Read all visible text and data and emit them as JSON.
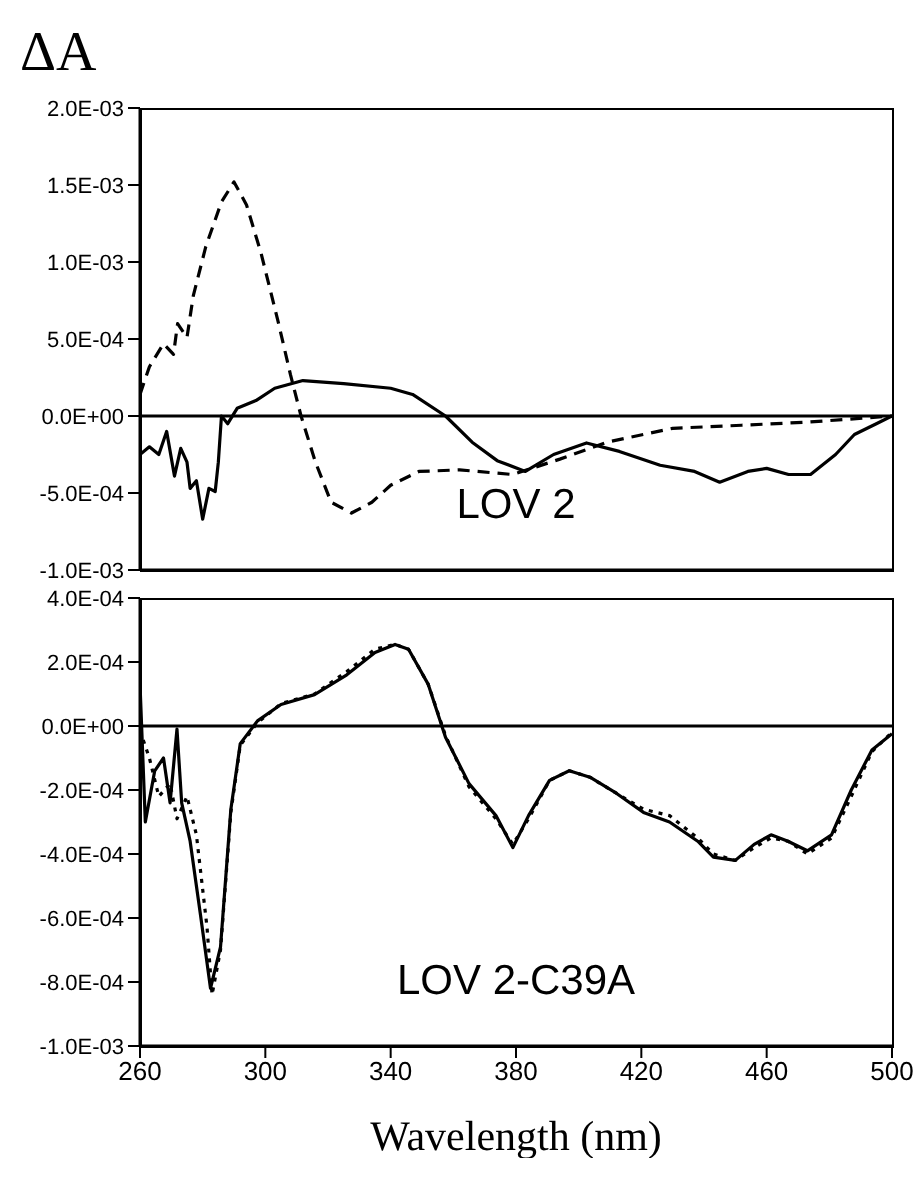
{
  "chart_data": [
    {
      "type": "line",
      "title": "LOV 2",
      "ylabel": "ΔA",
      "tick_labels": "y",
      "xlim": [
        260,
        500
      ],
      "ylim": [
        -0.001,
        0.002
      ],
      "yticks": [
        {
          "value": 0.002,
          "label": "2.0E-03"
        },
        {
          "value": 0.0015,
          "label": "1.5E-03"
        },
        {
          "value": 0.001,
          "label": "1.0E-03"
        },
        {
          "value": 0.0005,
          "label": "5.0E-04"
        },
        {
          "value": 0,
          "label": "0.0E+00"
        },
        {
          "value": -0.0005,
          "label": "-5.0E-04"
        },
        {
          "value": -0.001,
          "label": "-1.0E-03"
        }
      ],
      "ref_lines": [
        {
          "axis": "y",
          "value": 0,
          "color": "#000000"
        }
      ],
      "series": [
        {
          "color": "#000000",
          "line_style": "solid",
          "x": [
            260,
            263,
            266,
            268.5,
            271,
            273,
            275,
            276,
            278,
            280,
            282,
            284,
            285,
            286,
            288,
            291,
            297,
            303,
            312,
            325,
            340,
            347,
            357.5,
            366,
            374,
            383,
            392,
            402.5,
            413,
            426,
            437,
            445,
            454,
            460,
            467,
            474,
            482,
            488,
            495,
            500
          ],
          "values": [
            -0.00025,
            -0.0002,
            -0.00025,
            -0.0001,
            -0.00039,
            -0.00021,
            -0.0003,
            -0.00047,
            -0.00042,
            -0.00067,
            -0.00047,
            -0.00049,
            -0.0003,
            0,
            -5e-05,
            5e-05,
            0.0001,
            0.00018,
            0.00023,
            0.00021,
            0.00018,
            0.00014,
            0,
            -0.00017,
            -0.00029,
            -0.00036,
            -0.00025,
            -0.000175,
            -0.00023,
            -0.00032,
            -0.00036,
            -0.00043,
            -0.00036,
            -0.00034,
            -0.00038,
            -0.00038,
            -0.00025,
            -0.00012,
            -5e-05,
            0
          ]
        },
        {
          "color": "#000000",
          "line_style": "dashed",
          "x": [
            260,
            263,
            267.5,
            270.7,
            272,
            275,
            277,
            281,
            286,
            290,
            294,
            298.6,
            304,
            308,
            311.4,
            316,
            321,
            327.5,
            334,
            340,
            349,
            362,
            379,
            394,
            409,
            430,
            452,
            473,
            500
          ],
          "values": [
            0.00014,
            0.00032,
            0.00047,
            0.0004,
            0.0006,
            0.00051,
            0.00078,
            0.0011,
            0.00139,
            0.00152,
            0.00137,
            0.00106,
            0.00062,
            0.00027,
            0,
            -0.0003,
            -0.00056,
            -0.00063,
            -0.00056,
            -0.00045,
            -0.00036,
            -0.00035,
            -0.00038,
            -0.00028,
            -0.00017,
            -8e-05,
            -6e-05,
            -4e-05,
            0
          ]
        }
      ]
    },
    {
      "type": "line",
      "title": "LOV 2-C39A",
      "xlabel": "Wavelength (nm)",
      "xlim": [
        260,
        500
      ],
      "xticks": [
        260,
        300,
        340,
        380,
        420,
        460,
        500
      ],
      "ylim": [
        -0.001,
        0.0004
      ],
      "yticks": [
        {
          "value": 0.0004,
          "label": "4.0E-04"
        },
        {
          "value": 0.0002,
          "label": "2.0E-04"
        },
        {
          "value": 0,
          "label": "0.0E+00"
        },
        {
          "value": -0.0002,
          "label": "-2.0E-04"
        },
        {
          "value": -0.0004,
          "label": "-4.0E-04"
        },
        {
          "value": -0.0006,
          "label": "-6.0E-04"
        },
        {
          "value": -0.0008,
          "label": "-8.0E-04"
        },
        {
          "value": -0.001,
          "label": "-1.0E-03"
        }
      ],
      "ref_lines": [
        {
          "axis": "y",
          "value": 0,
          "color": "#000000"
        }
      ],
      "series": [
        {
          "color": "#000000",
          "line_style": "solid",
          "x": [
            260,
            261.7,
            264.7,
            267.5,
            269.6,
            271.8,
            273.3,
            276,
            279.3,
            282.5,
            285.7,
            289,
            292,
            297.5,
            305,
            315.7,
            326,
            335,
            341.4,
            345.7,
            352,
            357.5,
            365,
            373.6,
            379,
            384,
            390.7,
            397,
            403.6,
            412,
            420.7,
            429,
            438,
            443,
            450,
            456,
            461.4,
            466.8,
            473,
            480.7,
            487,
            493.6,
            500
          ],
          "values": [
            0.00013,
            -0.0003,
            -0.00014,
            -0.0001,
            -0.00024,
            -1e-05,
            -0.00024,
            -0.00036,
            -0.00059,
            -0.00082,
            -0.00069,
            -0.00026,
            -5.5e-05,
            1.6e-05,
            6.7e-05,
            9.8e-05,
            0.00016,
            0.00023,
            0.000255,
            0.00024,
            0.00013,
            -3.5e-05,
            -0.00018,
            -0.00028,
            -0.00038,
            -0.00028,
            -0.00017,
            -0.00014,
            -0.00016,
            -0.00021,
            -0.00027,
            -0.0003,
            -0.00036,
            -0.00041,
            -0.00042,
            -0.00037,
            -0.00034,
            -0.00036,
            -0.00039,
            -0.00034,
            -0.0002,
            -7.5e-05,
            -2.4e-05
          ]
        },
        {
          "color": "#000000",
          "line_style": "dotted",
          "x": [
            260,
            263,
            266,
            269.6,
            271.8,
            275,
            278,
            281.4,
            283,
            285.7,
            289,
            292,
            297.5,
            305,
            315.7,
            326,
            335,
            341.4,
            345.7,
            352,
            357.5,
            365,
            373.6,
            379,
            384,
            390.7,
            397,
            403.6,
            412,
            420.7,
            429,
            438,
            443,
            450,
            456,
            461.4,
            466.8,
            473,
            480.7,
            487,
            493.6,
            500
          ],
          "values": [
            -1.4e-05,
            -0.0001,
            -0.00022,
            -0.00018,
            -0.00029,
            -0.00022,
            -0.00034,
            -0.00063,
            -0.00084,
            -0.0007,
            -0.00027,
            -6e-05,
            1e-05,
            7e-05,
            0.0001,
            0.00017,
            0.00024,
            0.000255,
            0.00024,
            0.00013,
            -3e-05,
            -0.00019,
            -0.00029,
            -0.00037,
            -0.00029,
            -0.00017,
            -0.00014,
            -0.00016,
            -0.00021,
            -0.00026,
            -0.00028,
            -0.00035,
            -0.0004,
            -0.00042,
            -0.00038,
            -0.00035,
            -0.00036,
            -0.0004,
            -0.00035,
            -0.00022,
            -8e-05,
            -2e-05
          ]
        }
      ]
    }
  ]
}
